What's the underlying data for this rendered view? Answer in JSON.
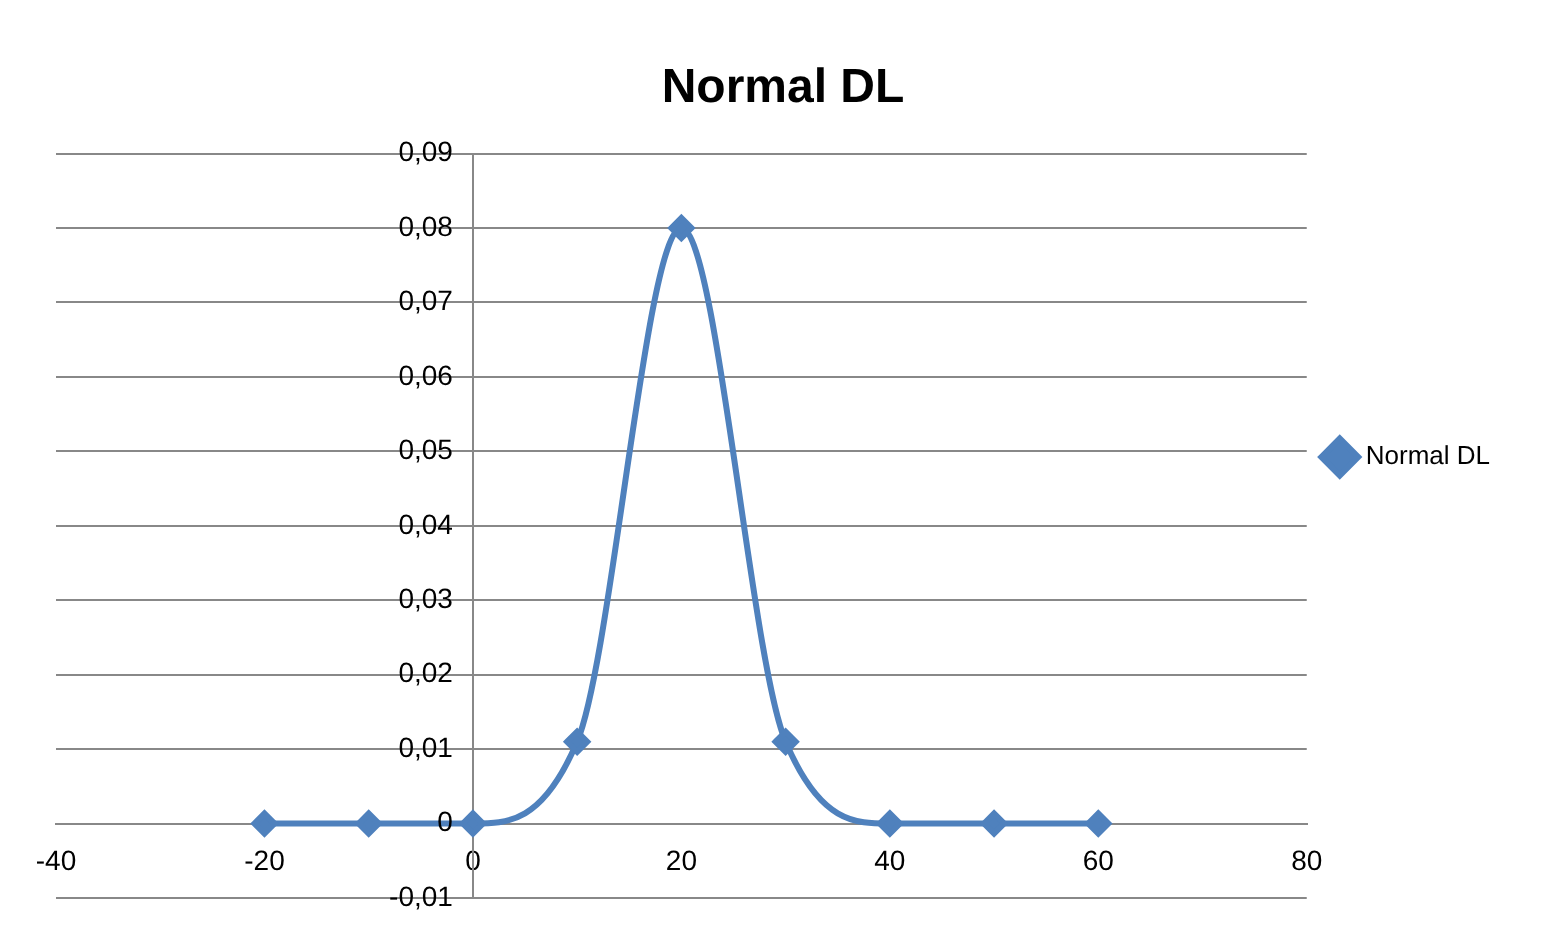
{
  "chart_data": {
    "type": "line",
    "title": "Normal DL",
    "series": [
      {
        "name": "Normal DL",
        "color": "#4f81bd",
        "x": [
          -20,
          -10,
          0,
          10,
          20,
          30,
          40,
          50,
          60
        ],
        "values": [
          0,
          0,
          0,
          0.011,
          0.08,
          0.011,
          0,
          0,
          0
        ]
      }
    ],
    "xlim": [
      -40,
      80
    ],
    "xticks": [
      -40,
      -20,
      0,
      20,
      40,
      60,
      80
    ],
    "ylim": [
      -0.01,
      0.09
    ],
    "yticks": [
      {
        "value": -0.01,
        "label": "-0,01"
      },
      {
        "value": 0,
        "label": "0"
      },
      {
        "value": 0.01,
        "label": "0,01"
      },
      {
        "value": 0.02,
        "label": "0,02"
      },
      {
        "value": 0.03,
        "label": "0,03"
      },
      {
        "value": 0.04,
        "label": "0,04"
      },
      {
        "value": 0.05,
        "label": "0,05"
      },
      {
        "value": 0.06,
        "label": "0,06"
      },
      {
        "value": 0.07,
        "label": "0,07"
      },
      {
        "value": 0.08,
        "label": "0,08"
      },
      {
        "value": 0.09,
        "label": "0,09"
      }
    ],
    "grid": "y",
    "legend": "right",
    "marker": "diamond",
    "line_style": "solid"
  }
}
